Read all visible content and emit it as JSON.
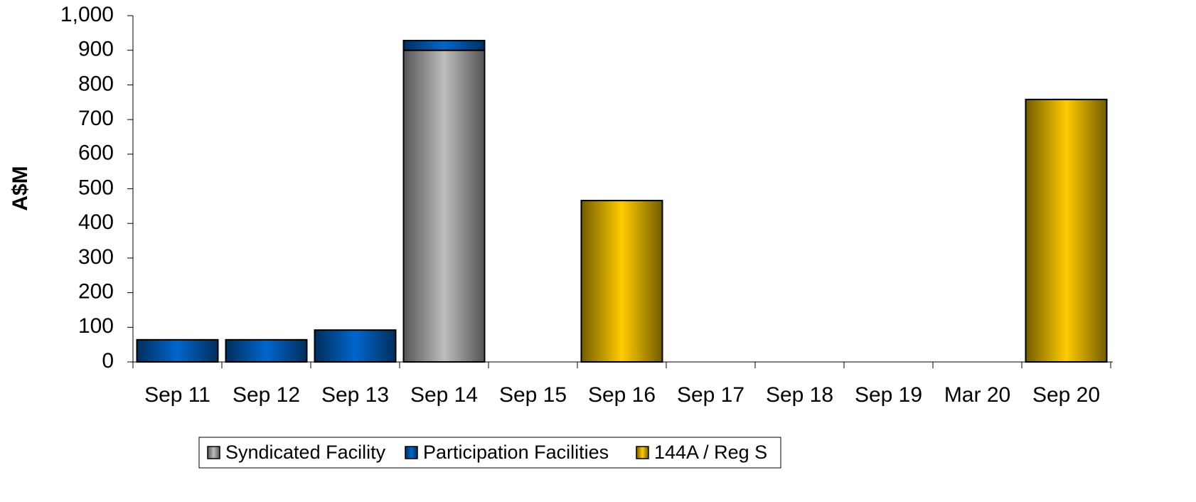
{
  "chart_data": {
    "type": "stacked_bar",
    "y_label": "A$M",
    "categories": [
      "Sep 11",
      "Sep 12",
      "Sep 13",
      "Sep 14",
      "Sep 15",
      "Sep 16",
      "Sep 17",
      "Sep 18",
      "Sep 19",
      "Mar 20",
      "Sep 20"
    ],
    "series": [
      {
        "name": "Syndicated Facility",
        "color": "#bdbdbd",
        "values": [
          0,
          0,
          0,
          900,
          0,
          0,
          0,
          0,
          0,
          0,
          0
        ]
      },
      {
        "name": "Participation Facilities",
        "color": "#0066cc",
        "values": [
          64,
          64,
          92,
          28,
          0,
          0,
          0,
          0,
          0,
          0,
          0
        ]
      },
      {
        "name": "144A / Reg S",
        "color": "#ffcc00",
        "values": [
          0,
          0,
          0,
          0,
          0,
          466,
          0,
          0,
          0,
          0,
          758
        ]
      }
    ],
    "ylim": [
      0,
      1000
    ],
    "yticks": [
      0,
      100,
      200,
      300,
      400,
      500,
      600,
      700,
      800,
      900,
      {
        "value": 1000,
        "label": "1,000"
      }
    ],
    "legend": "bottom"
  }
}
